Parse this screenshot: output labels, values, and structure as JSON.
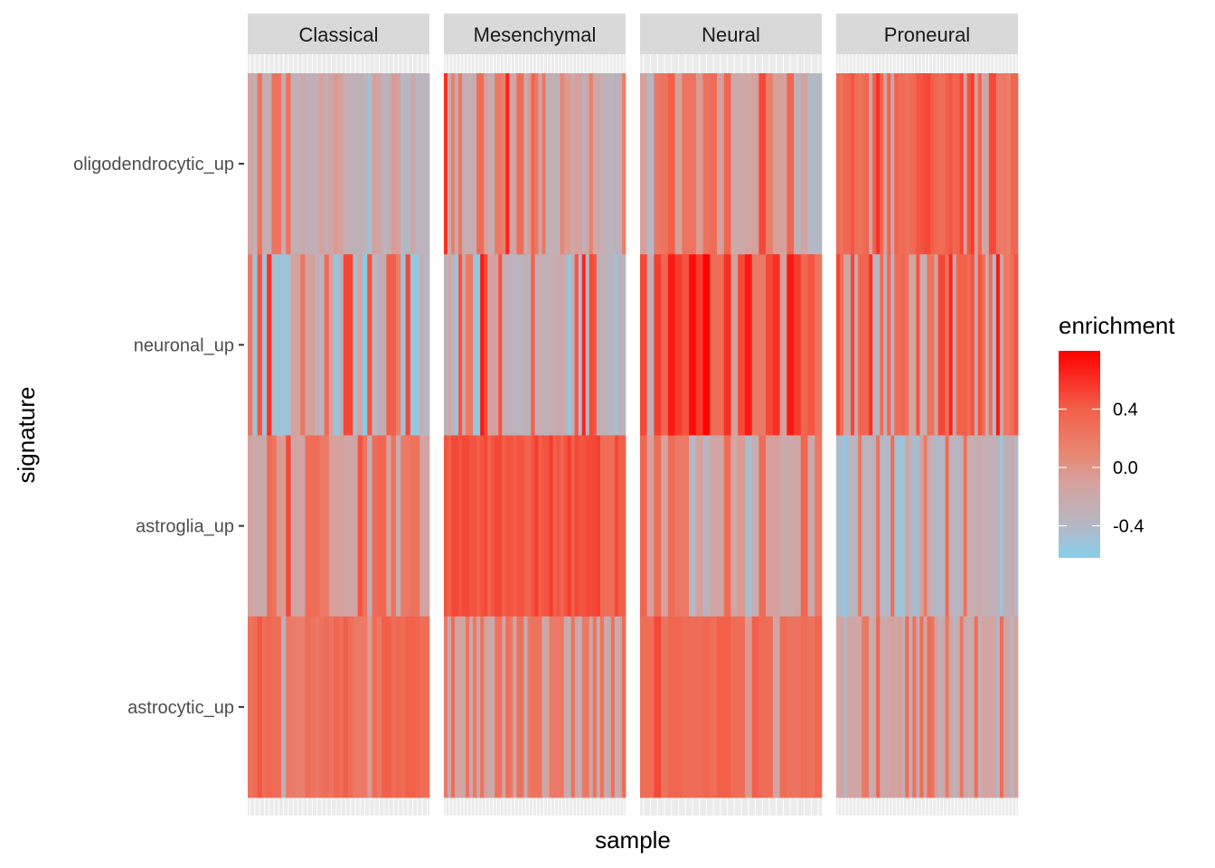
{
  "chart_data": {
    "type": "heatmap",
    "xlabel": "sample",
    "ylabel": "signature",
    "facets": [
      "Classical",
      "Mesenchymal",
      "Neural",
      "Proneural"
    ],
    "signatures": [
      "oligodendrocytic_up",
      "neuronal_up",
      "astroglia_up",
      "astrocytic_up"
    ],
    "legend": {
      "title": "enrichment",
      "ticks": [
        "0.4",
        "0.0",
        "-0.4"
      ],
      "tick_values": [
        0.4,
        0.0,
        -0.4
      ],
      "range": [
        -0.62,
        0.8
      ],
      "placement": "right",
      "color_stops": [
        {
          "value": -0.62,
          "color": "#87CEEB"
        },
        {
          "value": -0.4,
          "color": "#B4B8C6"
        },
        {
          "value": -0.1,
          "color": "#D6A19C"
        },
        {
          "value": 0.1,
          "color": "#E88672"
        },
        {
          "value": 0.4,
          "color": "#F2604A"
        },
        {
          "value": 0.8,
          "color": "#FF0000"
        }
      ]
    },
    "values": {
      "Classical": {
        "oligodendrocytic_up": [
          -0.15,
          -0.25,
          0.25,
          -0.25,
          -0.25,
          0.25,
          0.25,
          -0.2,
          0.25,
          -0.3,
          -0.3,
          -0.2,
          -0.3,
          -0.3,
          -0.25,
          -0.1,
          -0.25,
          -0.15,
          -0.05,
          -0.1,
          -0.25,
          -0.3,
          -0.3,
          -0.3,
          -0.35,
          -0.45,
          -0.1,
          -0.15,
          -0.35,
          -0.3,
          -0.05,
          -0.1,
          -0.4,
          -0.4,
          -0.2,
          -0.35,
          -0.35,
          -0.35
        ],
        "neuronal_up": [
          0.2,
          -0.5,
          0.45,
          -0.5,
          0.6,
          -0.5,
          -0.5,
          -0.5,
          -0.5,
          -0.1,
          -0.1,
          0.2,
          -0.15,
          -0.1,
          -0.25,
          -0.35,
          0.3,
          -0.15,
          -0.55,
          -0.3,
          0.5,
          0.5,
          -0.45,
          -0.15,
          -0.6,
          0.45,
          -0.35,
          -0.3,
          -0.25,
          0.4,
          0.4,
          0.15,
          -0.5,
          0.5,
          -0.55,
          -0.55,
          -0.25,
          -0.4
        ],
        "astroglia_up": [
          -0.1,
          -0.2,
          -0.2,
          -0.2,
          0.3,
          0.25,
          -0.05,
          -0.05,
          0.5,
          -0.15,
          -0.15,
          -0.15,
          0.3,
          0.3,
          0.3,
          0.2,
          0.2,
          -0.1,
          -0.1,
          -0.1,
          -0.15,
          -0.15,
          -0.15,
          0.45,
          0.25,
          -0.3,
          0.3,
          0.35,
          0.35,
          -0.1,
          0.25,
          -0.25,
          0.2,
          0.2,
          0.25,
          0.25,
          -0.15,
          -0.15
        ],
        "astrocytic_up": [
          0.25,
          0.3,
          0.45,
          0.3,
          0.35,
          0.3,
          0.3,
          -0.3,
          0.2,
          0.2,
          0.15,
          0.15,
          0.3,
          0.25,
          0.2,
          0.25,
          0.3,
          0.25,
          0.35,
          0.3,
          0.4,
          0.3,
          0.2,
          0.2,
          0.2,
          -0.05,
          0.3,
          0.2,
          0.4,
          0.4,
          0.3,
          0.35,
          0.3,
          0.4,
          0.4,
          0.35,
          0.3,
          0.3
        ]
      },
      "Mesenchymal": {
        "oligodendrocytic_up": [
          0.6,
          -0.2,
          0.15,
          -0.2,
          0.2,
          -0.25,
          -0.25,
          -0.25,
          -0.25,
          0.3,
          0.3,
          -0.1,
          -0.25,
          -0.25,
          0.2,
          0.2,
          0.15,
          0.65,
          -0.15,
          -0.15,
          0.3,
          0.3,
          -0.25,
          -0.05,
          0.35,
          0.2,
          -0.15,
          0.2,
          -0.3,
          -0.25,
          -0.3,
          -0.25,
          0.1,
          -0.05,
          -0.05,
          -0.2,
          -0.1,
          -0.1,
          -0.3,
          -0.15,
          0.15,
          -0.2,
          -0.2,
          -0.25,
          -0.3,
          -0.35,
          -0.35,
          -0.3,
          -0.3,
          0.15
        ],
        "neuronal_up": [
          -0.3,
          -0.2,
          -0.35,
          -0.5,
          0.45,
          -0.15,
          0.2,
          0.2,
          -0.55,
          -0.55,
          0.7,
          0.5,
          -0.15,
          -0.1,
          -0.1,
          0.45,
          -0.3,
          -0.3,
          -0.3,
          -0.35,
          -0.35,
          -0.35,
          -0.3,
          -0.3,
          0.4,
          -0.25,
          -0.25,
          -0.3,
          -0.3,
          -0.25,
          -0.25,
          -0.2,
          -0.2,
          -0.3,
          -0.55,
          -0.2,
          0.45,
          -0.4,
          0.65,
          -0.35,
          0.5,
          0.45,
          -0.3,
          -0.3,
          -0.3,
          -0.35,
          -0.35,
          -0.5,
          -0.3,
          -0.35
        ],
        "astroglia_up": [
          0.45,
          0.4,
          0.5,
          0.5,
          0.45,
          0.5,
          0.5,
          0.45,
          0.45,
          0.4,
          0.45,
          0.5,
          0.35,
          0.45,
          0.5,
          0.5,
          0.4,
          0.45,
          0.45,
          0.4,
          0.45,
          0.45,
          0.4,
          0.35,
          0.45,
          0.55,
          0.4,
          0.45,
          0.45,
          0.55,
          0.4,
          0.45,
          0.35,
          0.45,
          0.55,
          0.4,
          0.5,
          0.45,
          0.45,
          0.5,
          0.5,
          0.5,
          0.55,
          0.3,
          0.3,
          0.3,
          0.3,
          0.5,
          0.4,
          0.4
        ],
        "astrocytic_up": [
          0.2,
          -0.2,
          0.3,
          -0.15,
          -0.15,
          -0.15,
          0.25,
          -0.2,
          0.2,
          -0.15,
          0.25,
          -0.1,
          -0.2,
          -0.2,
          0.25,
          0.25,
          -0.15,
          0.3,
          0.2,
          -0.2,
          0.25,
          0.25,
          -0.25,
          0.2,
          0.25,
          0.25,
          0.25,
          -0.2,
          -0.15,
          0.2,
          0.2,
          0.2,
          0.2,
          -0.2,
          -0.25,
          0.25,
          -0.15,
          -0.3,
          0.2,
          0.2,
          -0.15,
          0.25,
          -0.2,
          0.25,
          -0.2,
          -0.2,
          0.25,
          -0.3,
          -0.15,
          0.3
        ]
      },
      "Neural": {
        "oligodendrocytic_up": [
          -0.1,
          -0.4,
          0.2,
          0.25,
          0.4,
          -0.1,
          0.25,
          0.25,
          -0.05,
          0.25,
          0.3,
          -0.1,
          0.35,
          -0.2,
          -0.2,
          -0.15,
          -0.1,
          0.5,
          0.15,
          -0.1,
          -0.1,
          0.35,
          -0.3,
          -0.15,
          -0.4,
          -0.4
        ],
        "neuronal_up": [
          0.5,
          -0.3,
          0.55,
          0.35,
          0.7,
          0.55,
          0.45,
          0.75,
          0.55,
          0.8,
          0.3,
          0.3,
          0.6,
          -0.1,
          0.5,
          0.7,
          0.2,
          0.2,
          0.5,
          0.6,
          -0.1,
          0.7,
          0.55,
          0.35,
          0.45,
          0.25
        ],
        "astroglia_up": [
          0.35,
          -0.1,
          0.3,
          -0.1,
          0.3,
          0.2,
          0.2,
          -0.4,
          -0.1,
          -0.35,
          -0.15,
          -0.15,
          0.3,
          -0.15,
          -0.05,
          -0.45,
          -0.25,
          0.3,
          -0.1,
          -0.1,
          -0.2,
          -0.2,
          -0.15,
          0.35,
          -0.2,
          0.2
        ],
        "astrocytic_up": [
          0.3,
          0.3,
          0.5,
          0.25,
          0.35,
          0.35,
          0.3,
          0.3,
          0.3,
          0.35,
          0.3,
          0.4,
          0.4,
          0.3,
          0.3,
          -0.05,
          0.4,
          0.3,
          0.3,
          -0.15,
          0.3,
          0.25,
          0.25,
          0.3,
          0.25,
          0.35
        ]
      },
      "Proneural": {
        "oligodendrocytic_up": [
          0.3,
          0.25,
          0.35,
          0.35,
          0.45,
          0.3,
          0.25,
          0.3,
          0.35,
          -0.15,
          0.4,
          0.6,
          0.35,
          -0.1,
          0.35,
          -0.15,
          0.4,
          0.3,
          0.3,
          0.25,
          0.3,
          0.35,
          0.45,
          0.45,
          0.5,
          0.5,
          0.4,
          0.35,
          0.3,
          0.3,
          0.4,
          0.45,
          0.35,
          0.4,
          0.5,
          -0.1,
          0.45,
          0.55,
          -0.1,
          0.35,
          -0.15,
          -0.15,
          0.5,
          0.5,
          0.2,
          0.2,
          0.2,
          0.15,
          0.35,
          0.35
        ],
        "neuronal_up": [
          0.5,
          0.3,
          -0.15,
          -0.15,
          0.5,
          -0.2,
          0.35,
          0.35,
          0.35,
          0.6,
          -0.35,
          -0.35,
          0.3,
          -0.3,
          0.35,
          -0.3,
          0.3,
          0.3,
          0.35,
          0.25,
          -0.15,
          -0.15,
          0.45,
          -0.25,
          -0.25,
          0.25,
          0.25,
          -0.15,
          0.5,
          0.5,
          0.25,
          0.65,
          -0.2,
          0.35,
          0.4,
          0.4,
          0.3,
          0.45,
          -0.2,
          0.45,
          0.3,
          -0.2,
          0.3,
          -0.45,
          0.7,
          -0.15,
          0.2,
          0.2,
          0.3,
          0.45
        ],
        "astroglia_up": [
          -0.45,
          -0.45,
          -0.55,
          -0.4,
          -0.35,
          -0.35,
          0.2,
          -0.35,
          -0.35,
          -0.35,
          -0.3,
          0.25,
          -0.4,
          -0.4,
          -0.4,
          0.3,
          -0.5,
          -0.5,
          -0.5,
          -0.15,
          -0.35,
          -0.45,
          -0.45,
          -0.1,
          0.2,
          -0.2,
          -0.35,
          -0.4,
          -0.4,
          -0.4,
          0.3,
          -0.35,
          -0.35,
          -0.35,
          -0.3,
          0.25,
          -0.25,
          -0.25,
          -0.25,
          -0.2,
          -0.25,
          -0.25,
          -0.3,
          -0.3,
          -0.3,
          -0.5,
          -0.3,
          -0.3,
          -0.2,
          -0.4
        ],
        "astrocytic_up": [
          -0.15,
          -0.15,
          -0.35,
          -0.15,
          -0.15,
          -0.15,
          -0.15,
          0.2,
          0.2,
          -0.25,
          -0.2,
          0.35,
          -0.2,
          -0.2,
          -0.15,
          -0.1,
          -0.15,
          -0.1,
          -0.25,
          0.3,
          -0.25,
          0.25,
          -0.2,
          0.3,
          -0.15,
          0.3,
          0.25,
          -0.1,
          -0.3,
          -0.2,
          0.2,
          -0.15,
          -0.35,
          -0.2,
          0.2,
          -0.2,
          -0.25,
          -0.2,
          0.3,
          -0.25,
          -0.15,
          -0.15,
          -0.15,
          -0.15,
          -0.35,
          0.3,
          -0.15,
          -0.2,
          -0.35,
          -0.1
        ]
      }
    }
  }
}
